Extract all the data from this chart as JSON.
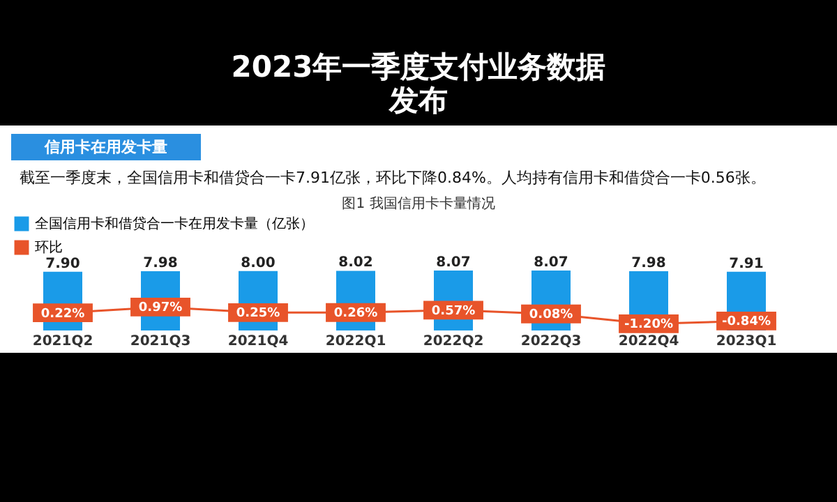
{
  "chart_data": {
    "type": "bar",
    "title": "2023年一季度支付业务数据发布",
    "subtitle": "信用卡在用发卡量",
    "annotations": [
      "截至一季度末，全国信用卡和借贷合一卡7.91亿张，环比下降0.84%。人均持有信用卡和借贷合一卡0.56张。",
      "图1 我国信用卡卡量情况"
    ],
    "categories": [
      "2021Q2",
      "2021Q3",
      "2021Q4",
      "2022Q1",
      "2022Q2",
      "2022Q3",
      "2022Q4",
      "2023Q1"
    ],
    "series": [
      {
        "name": "全国信用卡和借贷合一卡在用发卡量（亿张）",
        "color": "#1a9be8",
        "values": [
          7.9,
          7.98,
          8.0,
          8.02,
          8.07,
          8.07,
          7.98,
          7.91
        ],
        "value_labels": [
          "7.90",
          "7.98",
          "8.00",
          "8.02",
          "8.07",
          "8.07",
          "7.98",
          "7.91"
        ]
      },
      {
        "name": "环比",
        "type": "line",
        "marker": "square",
        "axis": "y2",
        "color": "#e8542a",
        "values": [
          0.22,
          0.97,
          0.25,
          0.26,
          0.57,
          0.08,
          -1.2,
          -0.84
        ],
        "value_labels": [
          "0.22%",
          "0.97%",
          "0.25%",
          "0.26%",
          "0.57%",
          "0.08%",
          "-1.20%",
          "-0.84%"
        ]
      }
    ],
    "legend": "top left"
  }
}
